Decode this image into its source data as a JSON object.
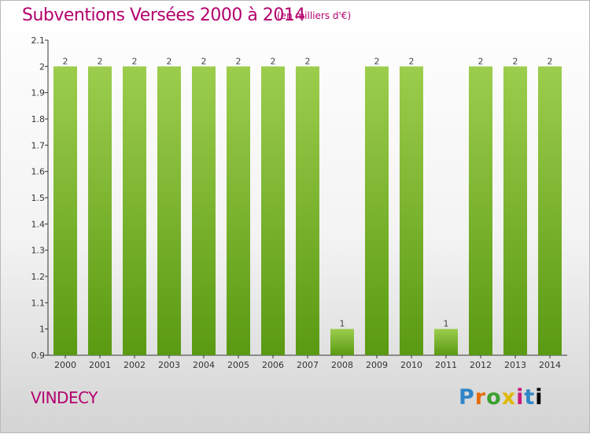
{
  "title": "Subventions Versées 2000 à 2014",
  "subtitle": "(en milliers d'€)",
  "place": "VINDECY",
  "logo_letters": [
    "P",
    "r",
    "o",
    "x",
    "i",
    "t",
    "i"
  ],
  "colors": {
    "title": "#b4006e",
    "bar_top": "#9ccd4d",
    "bar_bottom": "#5a9a12",
    "axis": "#333333"
  },
  "chart_data": {
    "type": "bar",
    "categories": [
      "2000",
      "2001",
      "2002",
      "2003",
      "2004",
      "2005",
      "2006",
      "2007",
      "2008",
      "2009",
      "2010",
      "2011",
      "2012",
      "2013",
      "2014"
    ],
    "values": [
      2,
      2,
      2,
      2,
      2,
      2,
      2,
      2,
      1,
      2,
      2,
      1,
      2,
      2,
      2
    ],
    "data_labels": [
      "2",
      "2",
      "2",
      "2",
      "2",
      "2",
      "2",
      "2",
      "1",
      "2",
      "2",
      "1",
      "2",
      "2",
      "2"
    ],
    "y_ticks": [
      "0.9",
      "1",
      "1.1",
      "1.2",
      "1.3",
      "1.4",
      "1.5",
      "1.6",
      "1.7",
      "1.8",
      "1.9",
      "2",
      "2.1"
    ],
    "ylim": [
      0.9,
      2.1
    ],
    "grid": false,
    "legend": "none"
  }
}
